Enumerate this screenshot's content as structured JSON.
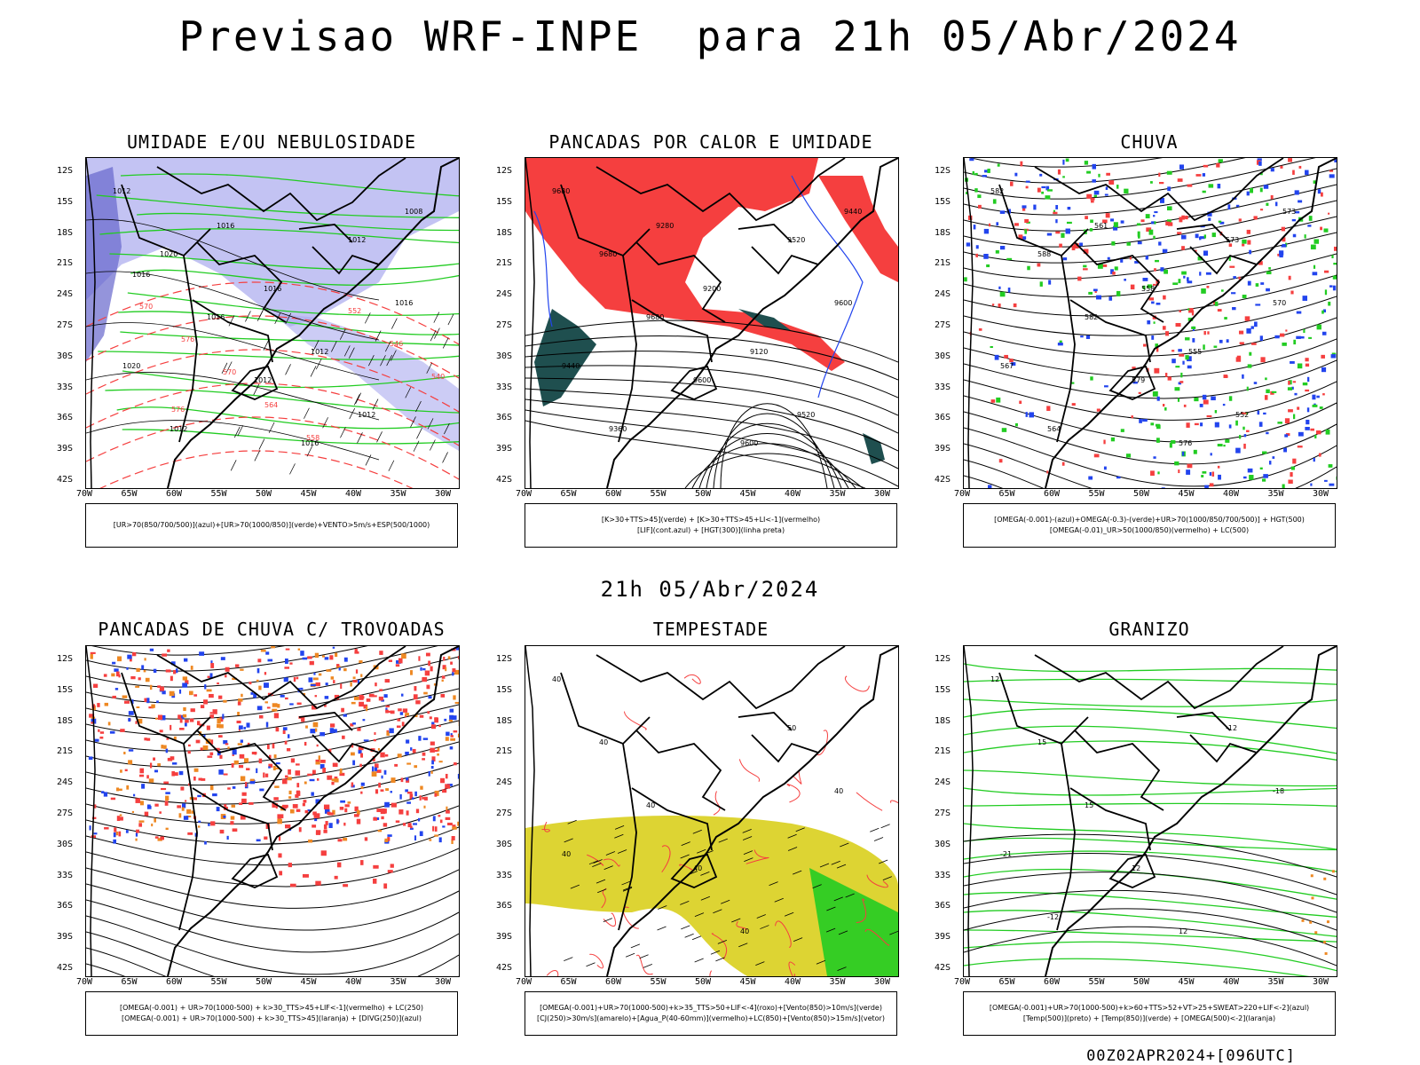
{
  "title": "Previsao WRF-INPE  para 21h 05/Abr/2024",
  "mid_title": "21h 05/Abr/2024",
  "footer": "00Z02APR2024+[096UTC]",
  "lat_labels": [
    "12S",
    "15S",
    "18S",
    "21S",
    "24S",
    "27S",
    "30S",
    "33S",
    "36S",
    "39S",
    "42S"
  ],
  "lon_labels": [
    "70W",
    "65W",
    "60W",
    "55W",
    "50W",
    "45W",
    "40W",
    "35W",
    "30W"
  ],
  "colors": {
    "red": "#f53f3f",
    "blue": "#2244ee",
    "green": "#22cc22",
    "lilac": "#aaaaee",
    "darkteal": "#1f4f4f",
    "yellow": "#ddd433",
    "orange": "#ee8822"
  },
  "panels": [
    {
      "title": "UMIDADE E/OU NEBULOSIDADE",
      "legend": [
        "[UR>70(850/700/500)](azul)+[UR>70(1000/850)](verde)+VENTO>5m/s+ESP(500/1000)"
      ],
      "chart_data": {
        "type": "contour-map",
        "contour_labels_black": [
          "1012",
          "1020",
          "1016",
          "1012",
          "1016",
          "1012",
          "1016",
          "1020",
          "1012",
          "1016",
          "1016",
          "1012",
          "1012",
          "1008",
          "1016"
        ],
        "contour_labels_red": [
          "570",
          "576",
          "570",
          "564",
          "558",
          "552",
          "546",
          "540",
          "576"
        ]
      }
    },
    {
      "title": "PANCADAS POR CALOR E UMIDADE",
      "legend": [
        "[K>30+TTS>45](verde) + [K>30+TTS>45+LI<-1](vermelho)",
        "[LIF](cont.azul) + [HGT(300)](linha preta)"
      ],
      "chart_data": {
        "type": "contour-map",
        "contour_labels": [
          "9680",
          "9680",
          "9680",
          "9600",
          "9600",
          "9520",
          "9600",
          "9440",
          "9360",
          "9280",
          "9200",
          "9120",
          "9520",
          "9440"
        ]
      }
    },
    {
      "title": "CHUVA",
      "legend": [
        "[OMEGA(-0.001)-(azul)+OMEGA(-0.3)-(verde)+UR>70(1000/850/700/500)] + HGT(500)",
        "[OMEGA(-0.01)_UR>50(1000/850)(vermelho) + LC(500)"
      ],
      "chart_data": {
        "type": "streamline-map",
        "contour_labels": [
          "582",
          "588",
          "582",
          "579",
          "576",
          "573",
          "570",
          "567",
          "564",
          "561",
          "558",
          "555",
          "552",
          "573"
        ]
      }
    },
    {
      "title": "PANCADAS DE CHUVA C/ TROVOADAS",
      "legend": [
        "[OMEGA(-0.001) + UR>70(1000-500) + k>30_TTS>45+LIF<-1](vermelho) + LC(250)",
        "[OMEGA(-0.001) + UR>70(1000-500) + k>30_TTS>45](laranja) + [DIVG(250)](azul)"
      ],
      "chart_data": {
        "type": "streamline-map"
      }
    },
    {
      "title": "TEMPESTADE",
      "legend": [
        "[OMEGA(-0.001)+UR>70(1000-500)+k>35_TTS>50+LIF<-4](roxo)+[Vento(850)>10m/s](verde)",
        "[CJ(250)>30m/s](amarelo)+[Agua_P(40-60mm)](vermelho)+LC(850)+[Vento(850)>15m/s](vetor)"
      ],
      "chart_data": {
        "type": "contour-map",
        "contour_labels": [
          "40",
          "40",
          "40",
          "40",
          "40",
          "50",
          "40",
          "40"
        ]
      }
    },
    {
      "title": "GRANIZO",
      "legend": [
        "[OMEGA(-0.001)+UR>70(1000-500)+k>60+TTS>52+VT>25+SWEAT>220+LIF<-2](azul)",
        "[Temp(500)](preto) + [Temp(850)](verde) + [OMEGA(500)<-2](laranja)"
      ],
      "chart_data": {
        "type": "contour-map",
        "contour_labels": [
          "12",
          "15",
          "15",
          "12",
          "12",
          "-12",
          "-18",
          "-21",
          "-12"
        ]
      }
    }
  ]
}
